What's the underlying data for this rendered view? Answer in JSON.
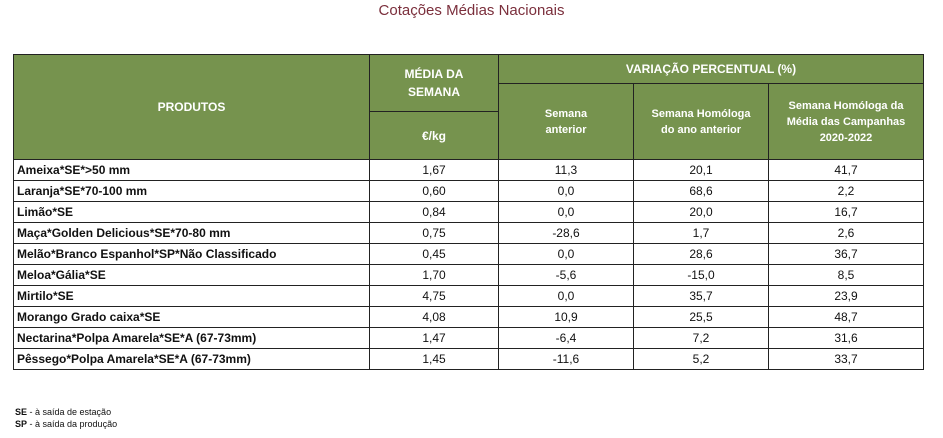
{
  "title": "Cotações Médias Nacionais",
  "header": {
    "produtos": "PRODUTOS",
    "media_line1": "MÉDIA DA",
    "media_line2": "SEMANA",
    "unit": "€/kg",
    "variacao": "VARIAÇÃO PERCENTUAL (%)",
    "col_semana_l1": "Semana",
    "col_semana_l2": "anterior",
    "col_homologa_l1": "Semana Homóloga",
    "col_homologa_l2": "do ano anterior",
    "col_campanhas_l1": "Semana Homóloga da",
    "col_campanhas_l2": "Média das Campanhas",
    "col_campanhas_l3": "2020-2022"
  },
  "rows": [
    {
      "produto": "Ameixa*SE*>50 mm",
      "media": "1,67",
      "semana": "11,3",
      "homologa": "20,1",
      "campanhas": "41,7"
    },
    {
      "produto": "Laranja*SE*70-100 mm",
      "media": "0,60",
      "semana": "0,0",
      "homologa": "68,6",
      "campanhas": "2,2"
    },
    {
      "produto": "Limão*SE",
      "media": "0,84",
      "semana": "0,0",
      "homologa": "20,0",
      "campanhas": "16,7"
    },
    {
      "produto": "Maça*Golden Delicious*SE*70-80 mm",
      "media": "0,75",
      "semana": "-28,6",
      "homologa": "1,7",
      "campanhas": "2,6"
    },
    {
      "produto": "Melão*Branco Espanhol*SP*Não Classificado",
      "media": "0,45",
      "semana": "0,0",
      "homologa": "28,6",
      "campanhas": "36,7"
    },
    {
      "produto": "Meloa*Gália*SE",
      "media": "1,70",
      "semana": "-5,6",
      "homologa": "-15,0",
      "campanhas": "8,5"
    },
    {
      "produto": "Mirtilo*SE",
      "media": "4,75",
      "semana": "0,0",
      "homologa": "35,7",
      "campanhas": "23,9"
    },
    {
      "produto": "Morango Grado caixa*SE",
      "media": "4,08",
      "semana": "10,9",
      "homologa": "25,5",
      "campanhas": "48,7"
    },
    {
      "produto": "Nectarina*Polpa Amarela*SE*A (67-73mm)",
      "media": "1,47",
      "semana": "-6,4",
      "homologa": "7,2",
      "campanhas": "31,6"
    },
    {
      "produto": "Pêssego*Polpa Amarela*SE*A (67-73mm)",
      "media": "1,45",
      "semana": "-11,6",
      "homologa": "5,2",
      "campanhas": "33,7"
    }
  ],
  "notes": [
    {
      "abbr": "SE",
      "text": " - à saída de estação"
    },
    {
      "abbr": "SP",
      "text": " - à saída da produção"
    }
  ],
  "colors": {
    "header_bg": "#76934e",
    "title": "#7b2f3c"
  }
}
